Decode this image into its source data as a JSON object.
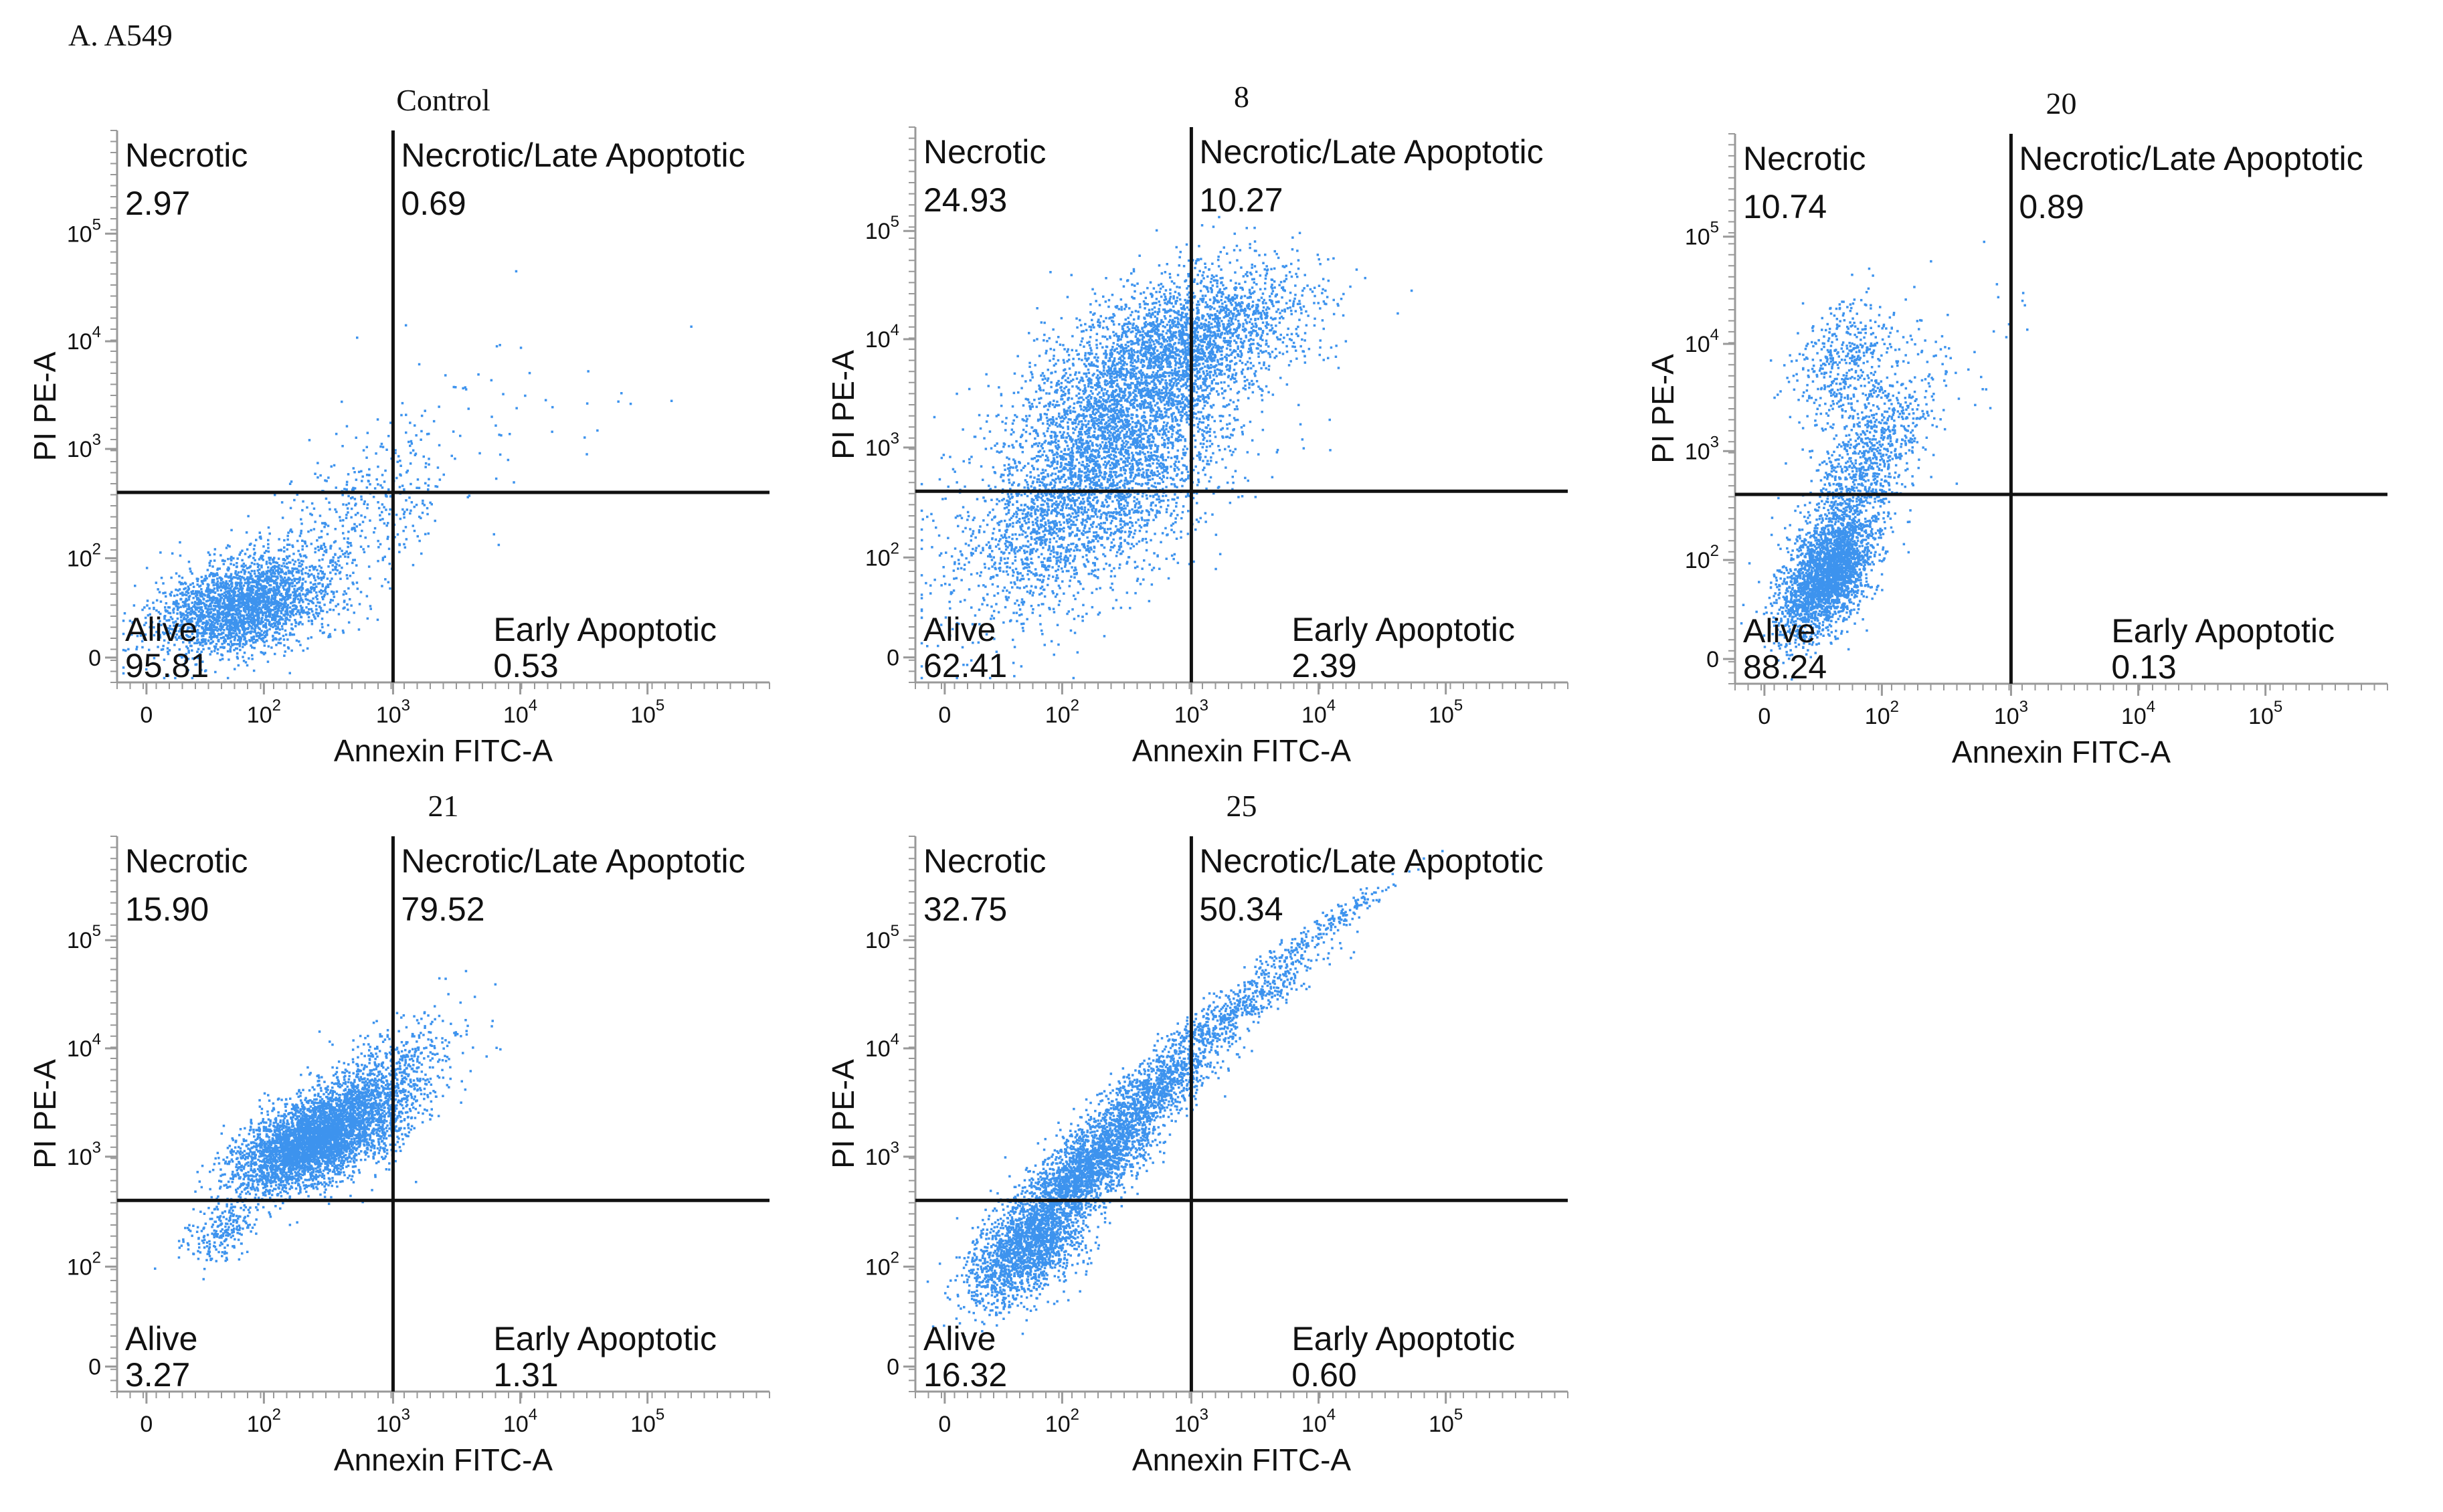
{
  "figure": {
    "label": "A. A549"
  },
  "labels": {
    "x_axis": "Annexin FITC-A",
    "y_axis": "PI PE-A"
  },
  "colors": {
    "dots": "#3d93ee",
    "axes": "#999999",
    "gates": "#111111",
    "text": "#111111"
  },
  "chart_data": [
    {
      "type": "scatter",
      "title": "Control",
      "xlabel": "Annexin FITC-A",
      "ylabel": "PI PE-A",
      "x_ticks": [
        "0",
        "10^2",
        "10^3",
        "10^4",
        "10^5"
      ],
      "y_ticks": [
        "0",
        "10^2",
        "10^3",
        "10^4",
        "10^5"
      ],
      "gate": {
        "x": 1000,
        "y": 400
      },
      "quadrants": [
        {
          "name": "Necrotic",
          "percent": "2.97"
        },
        {
          "name": "Necrotic/Late Apoptotic",
          "percent": "0.69"
        },
        {
          "name": "Alive",
          "percent": "95.81"
        },
        {
          "name": "Early Apoptotic",
          "percent": "0.53"
        }
      ]
    },
    {
      "type": "scatter",
      "title": "8",
      "xlabel": "Annexin FITC-A",
      "ylabel": "PI PE-A",
      "x_ticks": [
        "0",
        "10^2",
        "10^3",
        "10^4",
        "10^5"
      ],
      "y_ticks": [
        "0",
        "10^2",
        "10^3",
        "10^4",
        "10^5"
      ],
      "gate": {
        "x": 1000,
        "y": 400
      },
      "quadrants": [
        {
          "name": "Necrotic",
          "percent": "24.93"
        },
        {
          "name": "Necrotic/Late  Apoptotic",
          "percent": "10.27"
        },
        {
          "name": "Alive",
          "percent": "62.41"
        },
        {
          "name": "Early Apoptotic",
          "percent": "2.39"
        }
      ]
    },
    {
      "type": "scatter",
      "title": "20",
      "xlabel": "Annexin FITC-A",
      "ylabel": "PI PE-A",
      "x_ticks": [
        "0",
        "10^2",
        "10^3",
        "10^4",
        "10^5"
      ],
      "y_ticks": [
        "0",
        "10^2",
        "10^3",
        "10^4",
        "10^5"
      ],
      "gate": {
        "x": 1000,
        "y": 400
      },
      "quadrants": [
        {
          "name": "Necrotic",
          "percent": "10.74"
        },
        {
          "name": "Necrotic/Late Apoptotic",
          "percent": "0.89"
        },
        {
          "name": "Alive",
          "percent": "88.24"
        },
        {
          "name": "Early Apoptotic",
          "percent": "0.13"
        }
      ]
    },
    {
      "type": "scatter",
      "title": "21",
      "xlabel": "Annexin FITC-A",
      "ylabel": "PI PE-A",
      "x_ticks": [
        "0",
        "10^2",
        "10^3",
        "10^4",
        "10^5"
      ],
      "y_ticks": [
        "0",
        "10^2",
        "10^3",
        "10^4",
        "10^5"
      ],
      "gate": {
        "x": 1000,
        "y": 400
      },
      "quadrants": [
        {
          "name": "Necrotic",
          "percent": "15.90"
        },
        {
          "name": "Necrotic/Late Apoptotic",
          "percent": "79.52"
        },
        {
          "name": "Alive",
          "percent": "3.27"
        },
        {
          "name": "Early Apoptotic",
          "percent": "1.31"
        }
      ]
    },
    {
      "type": "scatter",
      "title": "25",
      "xlabel": "Annexin FITC-A",
      "ylabel": "PI PE-A",
      "x_ticks": [
        "0",
        "10^2",
        "10^3",
        "10^4",
        "10^5"
      ],
      "y_ticks": [
        "0",
        "10^2",
        "10^3",
        "10^4",
        "10^5"
      ],
      "gate": {
        "x": 1000,
        "y": 400
      },
      "quadrants": [
        {
          "name": "Necrotic",
          "percent": "32.75"
        },
        {
          "name": "Necrotic/Late Apoptotic",
          "percent": "50.34"
        },
        {
          "name": "Alive",
          "percent": "16.32"
        },
        {
          "name": "Early Apoptotic",
          "percent": "0.60"
        }
      ]
    }
  ]
}
